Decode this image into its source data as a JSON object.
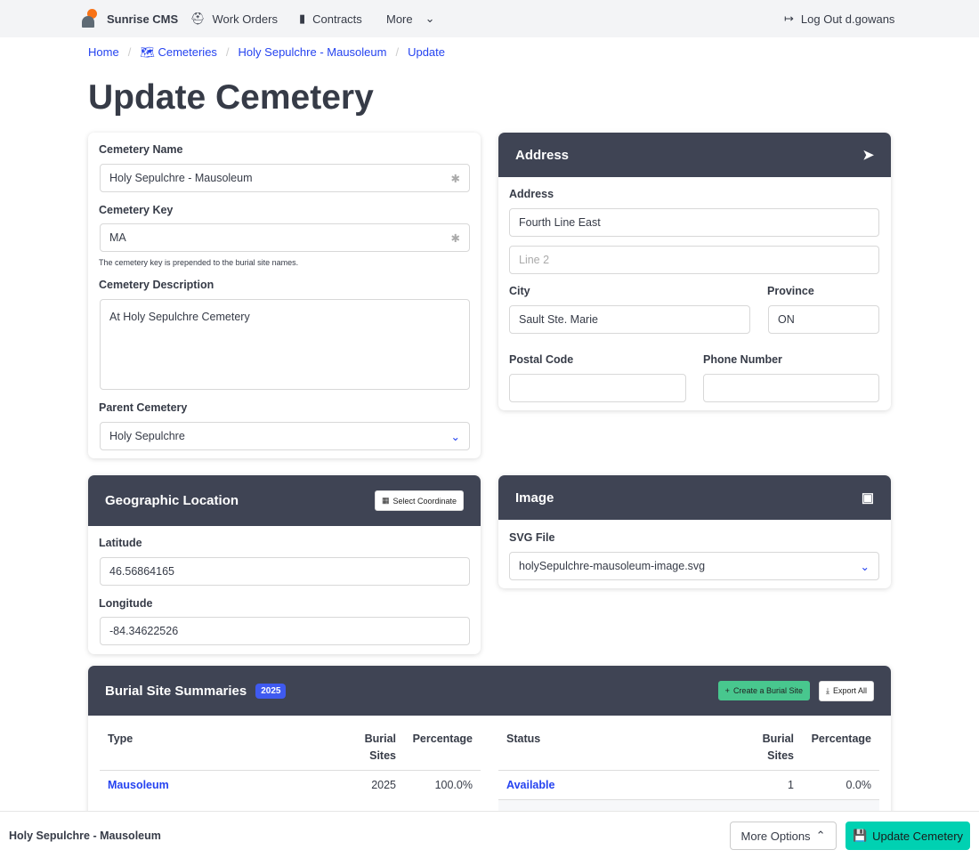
{
  "nav": {
    "brand": "Sunrise CMS",
    "work_orders": "Work Orders",
    "contracts": "Contracts",
    "more": "More",
    "logout": "Log Out d.gowans"
  },
  "breadcrumb": [
    "Home",
    "Cemeteries",
    "Holy Sepulchre - Mausoleum",
    "Update"
  ],
  "page_title": "Update Cemetery",
  "details": {
    "name_label": "Cemetery Name",
    "name_value": "Holy Sepulchre - Mausoleum",
    "key_label": "Cemetery Key",
    "key_value": "MA",
    "key_help": "The cemetery key is prepended to the burial site names.",
    "desc_label": "Cemetery Description",
    "desc_value": "At Holy Sepulchre Cemetery",
    "parent_label": "Parent Cemetery",
    "parent_value": "Holy Sepulchre"
  },
  "address": {
    "title": "Address",
    "address_label": "Address",
    "line1": "Fourth Line East",
    "line2_placeholder": "Line 2",
    "city_label": "City",
    "city": "Sault Ste. Marie",
    "province_label": "Province",
    "province": "ON",
    "postal_label": "Postal Code",
    "postal": "",
    "phone_label": "Phone Number",
    "phone": ""
  },
  "geo": {
    "title": "Geographic Location",
    "select_button": "Select Coordinate",
    "lat_label": "Latitude",
    "lat": "46.56864165",
    "lng_label": "Longitude",
    "lng": "-84.34622526"
  },
  "image": {
    "title": "Image",
    "svg_label": "SVG File",
    "svg_value": "holySepulchre-mausoleum-image.svg"
  },
  "summaries": {
    "title": "Burial Site Summaries",
    "count": "2025",
    "create_button": "Create a Burial Site",
    "export_button": "Export All",
    "type_table": {
      "headers": [
        "Type",
        "Burial Sites",
        "Percentage"
      ],
      "rows": [
        {
          "name": "Mausoleum",
          "count": "2025",
          "pct": "100.0%"
        }
      ]
    },
    "status_table": {
      "headers": [
        "Status",
        "Burial Sites",
        "Percentage"
      ],
      "rows": [
        {
          "name": "Available",
          "count": "1",
          "pct": "0.0%"
        }
      ]
    }
  },
  "footer": {
    "title": "Holy Sepulchre - Mausoleum",
    "more_options": "More Options",
    "update": "Update Cemetery"
  },
  "colors": {
    "header": "#3f4454",
    "link": "#2543f0",
    "success": "#48c78e",
    "primary": "#00d1b2",
    "badge": "#485fc7"
  }
}
